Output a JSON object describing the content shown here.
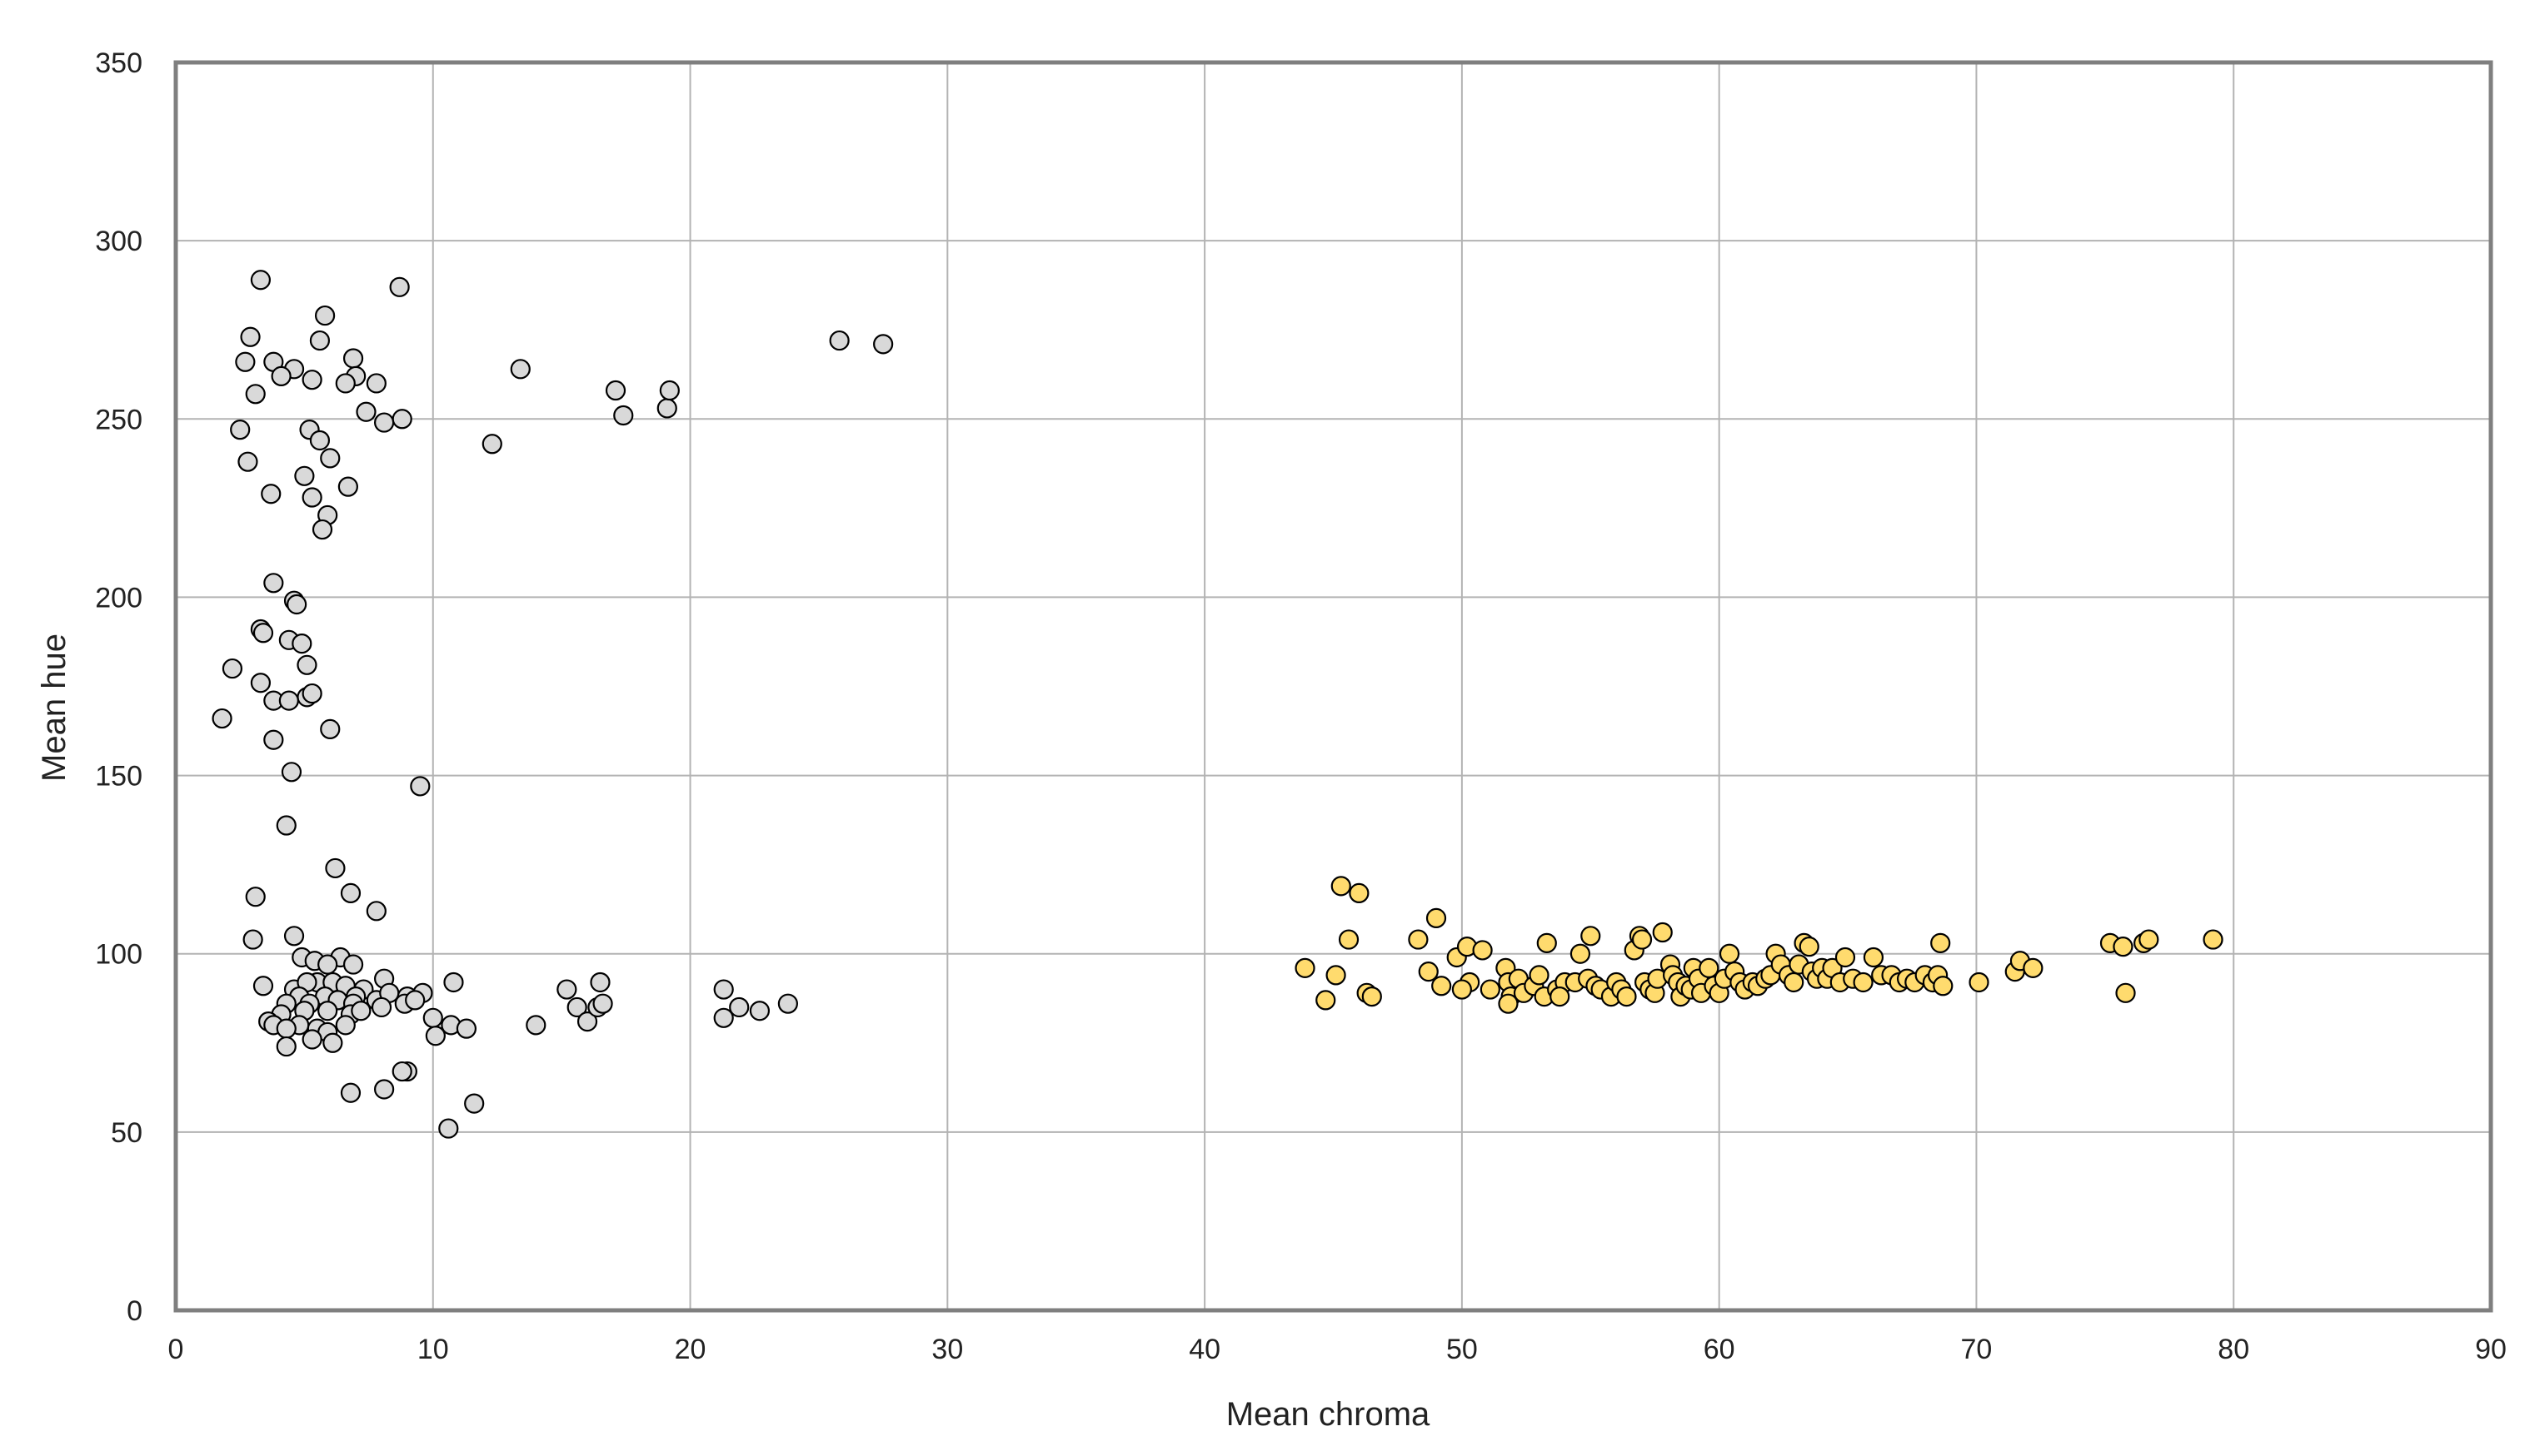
{
  "chart_data": {
    "type": "scatter",
    "title": "",
    "xlabel": "Mean chroma",
    "ylabel": "Mean hue",
    "xlim": [
      0,
      90
    ],
    "ylim": [
      0,
      350
    ],
    "xticks": [
      0,
      10,
      20,
      30,
      40,
      50,
      60,
      70,
      80,
      90
    ],
    "yticks": [
      0,
      50,
      100,
      150,
      200,
      250,
      300,
      350
    ],
    "grid": true,
    "legend": "none",
    "colors": {
      "series_gray": "#d9d9d9",
      "series_yellow": "#ffdb6e",
      "marker_edge": "#000000",
      "grid": "#b3b3b3",
      "frame": "#7f7f7f"
    },
    "series": [
      {
        "color": "#d9d9d9",
        "points": [
          [
            3.3,
            289
          ],
          [
            8.7,
            287
          ],
          [
            5.8,
            279
          ],
          [
            2.9,
            273
          ],
          [
            5.6,
            272
          ],
          [
            2.7,
            266
          ],
          [
            3.8,
            266
          ],
          [
            6.9,
            267
          ],
          [
            4.6,
            264
          ],
          [
            4.1,
            262
          ],
          [
            5.3,
            261
          ],
          [
            7.0,
            262
          ],
          [
            7.8,
            260
          ],
          [
            6.6,
            260
          ],
          [
            3.1,
            257
          ],
          [
            7.4,
            252
          ],
          [
            8.1,
            249
          ],
          [
            8.8,
            250
          ],
          [
            2.5,
            247
          ],
          [
            5.2,
            247
          ],
          [
            5.6,
            244
          ],
          [
            2.8,
            238
          ],
          [
            6.0,
            239
          ],
          [
            5.0,
            234
          ],
          [
            6.7,
            231
          ],
          [
            3.7,
            229
          ],
          [
            5.3,
            228
          ],
          [
            5.9,
            223
          ],
          [
            5.7,
            219
          ],
          [
            3.8,
            204
          ],
          [
            4.6,
            199
          ],
          [
            4.7,
            198
          ],
          [
            3.3,
            191
          ],
          [
            3.4,
            190
          ],
          [
            4.4,
            188
          ],
          [
            4.9,
            187
          ],
          [
            5.1,
            181
          ],
          [
            2.2,
            180
          ],
          [
            3.3,
            176
          ],
          [
            5.1,
            172
          ],
          [
            5.3,
            173
          ],
          [
            3.8,
            171
          ],
          [
            4.4,
            171
          ],
          [
            1.8,
            166
          ],
          [
            6.0,
            163
          ],
          [
            3.8,
            160
          ],
          [
            4.5,
            151
          ],
          [
            9.5,
            147
          ],
          [
            4.3,
            136
          ],
          [
            6.2,
            124
          ],
          [
            6.8,
            117
          ],
          [
            3.1,
            116
          ],
          [
            7.8,
            112
          ],
          [
            4.6,
            105
          ],
          [
            3.0,
            104
          ],
          [
            4.9,
            99
          ],
          [
            5.4,
            98
          ],
          [
            6.4,
            99
          ],
          [
            6.9,
            97
          ],
          [
            5.9,
            97
          ],
          [
            8.1,
            93
          ],
          [
            3.4,
            91
          ],
          [
            5.5,
            92
          ],
          [
            4.6,
            90
          ],
          [
            5.1,
            92
          ],
          [
            6.1,
            92
          ],
          [
            6.6,
            91
          ],
          [
            7.3,
            90
          ],
          [
            4.8,
            88
          ],
          [
            5.8,
            88
          ],
          [
            7.0,
            88
          ],
          [
            7.8,
            87
          ],
          [
            8.3,
            89
          ],
          [
            9.0,
            88
          ],
          [
            9.6,
            89
          ],
          [
            4.3,
            86
          ],
          [
            5.2,
            86
          ],
          [
            6.3,
            87
          ],
          [
            6.9,
            86
          ],
          [
            8.0,
            85
          ],
          [
            8.9,
            86
          ],
          [
            9.3,
            87
          ],
          [
            4.1,
            83
          ],
          [
            5.0,
            84
          ],
          [
            5.9,
            84
          ],
          [
            6.8,
            83
          ],
          [
            7.2,
            84
          ],
          [
            3.6,
            81
          ],
          [
            3.8,
            80
          ],
          [
            4.8,
            80
          ],
          [
            5.5,
            79
          ],
          [
            6.6,
            80
          ],
          [
            4.3,
            79
          ],
          [
            5.9,
            78
          ],
          [
            5.3,
            76
          ],
          [
            4.3,
            74
          ],
          [
            6.1,
            75
          ],
          [
            10.0,
            82
          ],
          [
            10.7,
            80
          ],
          [
            11.3,
            79
          ],
          [
            10.1,
            77
          ],
          [
            10.8,
            92
          ],
          [
            14.0,
            80
          ],
          [
            15.2,
            90
          ],
          [
            15.6,
            85
          ],
          [
            16.0,
            81
          ],
          [
            16.4,
            85
          ],
          [
            16.5,
            92
          ],
          [
            16.6,
            86
          ],
          [
            21.3,
            90
          ],
          [
            21.9,
            85
          ],
          [
            22.7,
            84
          ],
          [
            23.8,
            86
          ],
          [
            21.3,
            82
          ],
          [
            9.0,
            67
          ],
          [
            8.8,
            67
          ],
          [
            8.1,
            62
          ],
          [
            6.8,
            61
          ],
          [
            11.6,
            58
          ],
          [
            10.6,
            51
          ],
          [
            12.3,
            243
          ],
          [
            13.4,
            264
          ],
          [
            17.1,
            258
          ],
          [
            17.4,
            251
          ],
          [
            19.1,
            253
          ],
          [
            19.2,
            258
          ],
          [
            25.8,
            272
          ],
          [
            27.5,
            271
          ]
        ]
      },
      {
        "color": "#ffdb6e",
        "points": [
          [
            45.3,
            119
          ],
          [
            46.0,
            117
          ],
          [
            49.0,
            110
          ],
          [
            43.9,
            96
          ],
          [
            45.1,
            94
          ],
          [
            44.7,
            87
          ],
          [
            46.3,
            89
          ],
          [
            46.5,
            88
          ],
          [
            45.6,
            104
          ],
          [
            48.3,
            104
          ],
          [
            48.7,
            95
          ],
          [
            49.2,
            91
          ],
          [
            49.8,
            99
          ],
          [
            50.2,
            102
          ],
          [
            50.8,
            101
          ],
          [
            50.3,
            92
          ],
          [
            50.0,
            90
          ],
          [
            51.1,
            90
          ],
          [
            51.7,
            96
          ],
          [
            51.8,
            92
          ],
          [
            51.9,
            88
          ],
          [
            52.2,
            93
          ],
          [
            51.8,
            86
          ],
          [
            52.4,
            89
          ],
          [
            52.8,
            91
          ],
          [
            53.0,
            94
          ],
          [
            53.2,
            88
          ],
          [
            53.3,
            103
          ],
          [
            53.7,
            90
          ],
          [
            54.0,
            92
          ],
          [
            53.8,
            88
          ],
          [
            54.6,
            100
          ],
          [
            54.4,
            92
          ],
          [
            54.9,
            93
          ],
          [
            55.0,
            105
          ],
          [
            55.2,
            91
          ],
          [
            55.4,
            90
          ],
          [
            55.8,
            88
          ],
          [
            56.0,
            92
          ],
          [
            56.2,
            90
          ],
          [
            56.4,
            88
          ],
          [
            56.7,
            101
          ],
          [
            56.9,
            105
          ],
          [
            57.0,
            104
          ],
          [
            57.1,
            92
          ],
          [
            57.3,
            90
          ],
          [
            57.5,
            89
          ],
          [
            57.6,
            93
          ],
          [
            57.8,
            106
          ],
          [
            58.1,
            97
          ],
          [
            58.2,
            94
          ],
          [
            58.4,
            92
          ],
          [
            58.5,
            88
          ],
          [
            58.7,
            91
          ],
          [
            58.9,
            90
          ],
          [
            59.0,
            96
          ],
          [
            59.2,
            93
          ],
          [
            59.3,
            89
          ],
          [
            59.6,
            96
          ],
          [
            59.8,
            91
          ],
          [
            60.0,
            89
          ],
          [
            60.2,
            93
          ],
          [
            60.4,
            100
          ],
          [
            60.6,
            95
          ],
          [
            60.8,
            92
          ],
          [
            61.0,
            90
          ],
          [
            61.3,
            92
          ],
          [
            61.5,
            91
          ],
          [
            61.8,
            93
          ],
          [
            62.0,
            94
          ],
          [
            62.2,
            100
          ],
          [
            62.4,
            97
          ],
          [
            62.7,
            94
          ],
          [
            62.9,
            92
          ],
          [
            63.1,
            97
          ],
          [
            63.3,
            103
          ],
          [
            63.5,
            102
          ],
          [
            63.6,
            95
          ],
          [
            63.8,
            93
          ],
          [
            64.0,
            96
          ],
          [
            64.2,
            93
          ],
          [
            64.4,
            96
          ],
          [
            64.7,
            92
          ],
          [
            64.9,
            99
          ],
          [
            65.2,
            93
          ],
          [
            65.6,
            92
          ],
          [
            66.0,
            99
          ],
          [
            66.3,
            94
          ],
          [
            66.7,
            94
          ],
          [
            67.0,
            92
          ],
          [
            67.3,
            93
          ],
          [
            67.6,
            92
          ],
          [
            68.0,
            94
          ],
          [
            68.3,
            92
          ],
          [
            68.5,
            94
          ],
          [
            68.7,
            91
          ],
          [
            68.6,
            103
          ],
          [
            70.1,
            92
          ],
          [
            71.5,
            95
          ],
          [
            71.7,
            98
          ],
          [
            72.2,
            96
          ],
          [
            75.2,
            103
          ],
          [
            75.7,
            102
          ],
          [
            75.8,
            89
          ],
          [
            76.5,
            103
          ],
          [
            76.7,
            104
          ],
          [
            79.2,
            104
          ]
        ]
      }
    ]
  }
}
